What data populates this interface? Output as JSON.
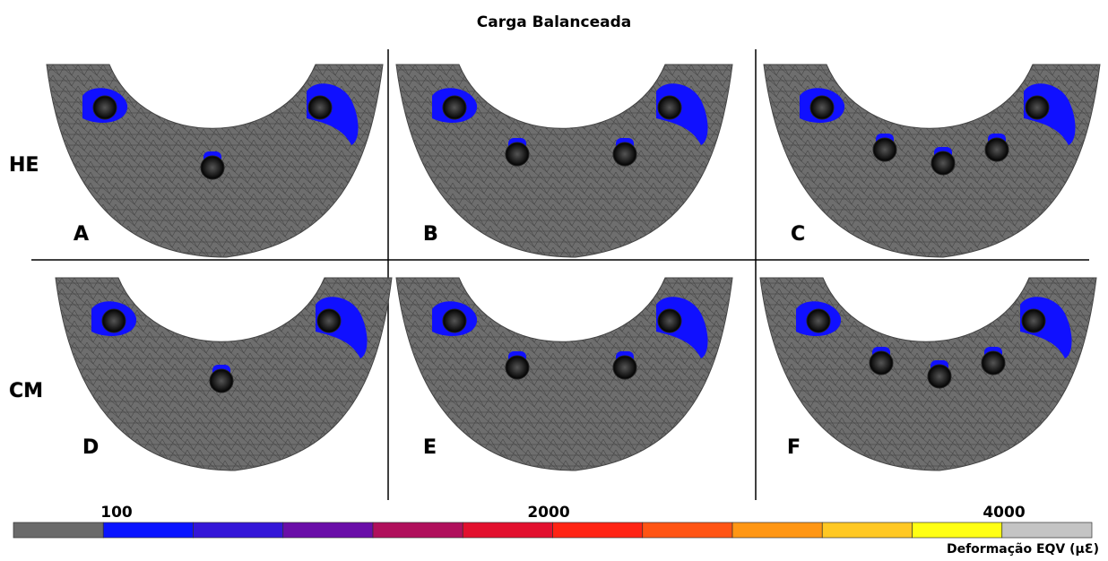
{
  "title": "Carga Balanceada",
  "rows": [
    "HE",
    "CM"
  ],
  "panels": [
    "A",
    "B",
    "C",
    "D",
    "E",
    "F"
  ],
  "colorbar": {
    "labels": [
      "100",
      "2000",
      "4000"
    ],
    "colors": [
      "#6a6a6a",
      "#0a14ff",
      "#3416d8",
      "#6a0ea8",
      "#b0105c",
      "#e2102e",
      "#ff2414",
      "#ff5414",
      "#ff9614",
      "#ffc824",
      "#ffff14",
      "#c4c4c4"
    ],
    "title": "Deformação EQV (µƐ)"
  }
}
